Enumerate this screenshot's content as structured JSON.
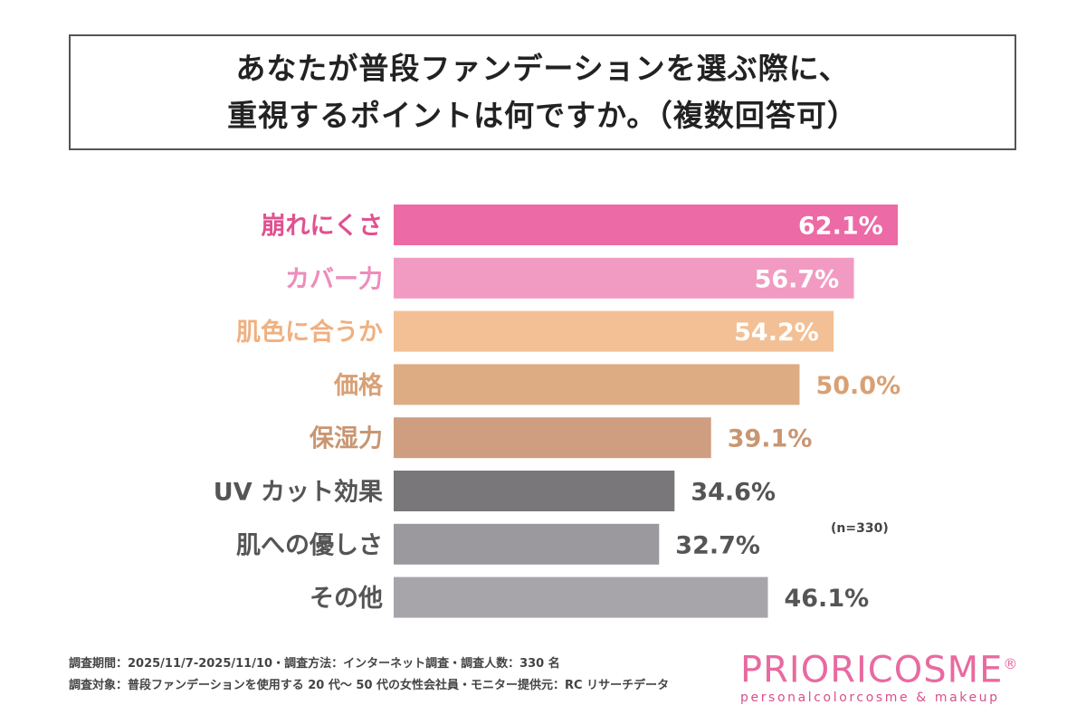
{
  "title": {
    "line1": "あなたが普段ファンデーションを選ぶ際に、",
    "line2": "重視するポイントは何ですか。（複数回答可）"
  },
  "chart_data": {
    "type": "bar",
    "orientation": "horizontal",
    "title": "あなたが普段ファンデーションを選ぶ際に、重視するポイントは何ですか。（複数回答可）",
    "categories": [
      "崩れにくさ",
      "カバー力",
      "肌色に合うか",
      "価格",
      "保湿力",
      "UV カット効果",
      "肌への優しさ",
      "その他"
    ],
    "values": [
      62.1,
      56.7,
      54.2,
      50.0,
      39.1,
      34.6,
      32.7,
      46.1
    ],
    "value_labels": [
      "62.1%",
      "56.7%",
      "54.2%",
      "50.0%",
      "39.1%",
      "34.6%",
      "32.7%",
      "46.1%"
    ],
    "colors": [
      "#ec6aa5",
      "#f29bc2",
      "#f3bf94",
      "#deac82",
      "#cf9e80",
      "#79777a",
      "#9b999d",
      "#a7a5a9"
    ],
    "label_colors": [
      "#e0518f",
      "#ee8cba",
      "#f0b080",
      "#d9a075",
      "#c89672",
      "#555555",
      "#555555",
      "#555555"
    ],
    "xlim": [
      0,
      62.1
    ],
    "note": "(n=330)"
  },
  "footer": {
    "line1": "調査期間：2025/11/7-2025/11/10・調査方法：インターネット調査・調査人数：330 名",
    "line2": "調査対象：普段ファンデーションを使用する 20 代～ 50 代の女性会社員・モニター提供元：RC リサーチデータ"
  },
  "logo": {
    "name": "PRIORICOSME",
    "registered": "®",
    "tagline": "personalcolorcosme & makeup"
  }
}
